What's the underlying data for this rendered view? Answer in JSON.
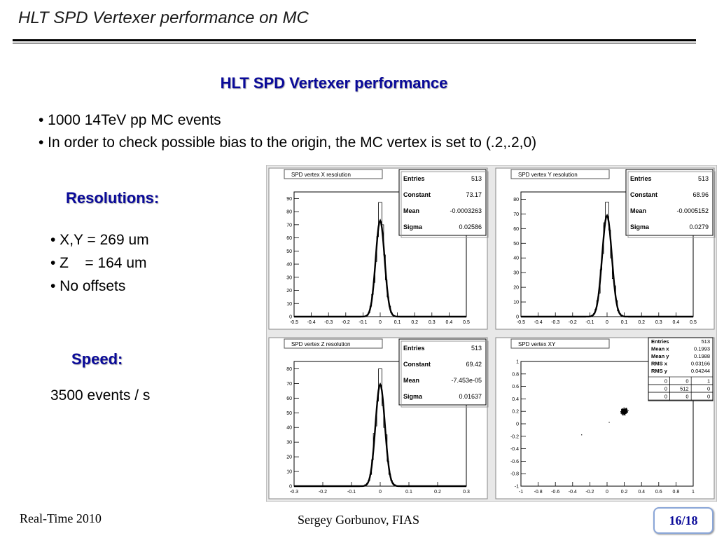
{
  "slide": {
    "title": "HLT SPD Vertexer performance on MC",
    "subtitle": "HLT SPD Vertexer performance",
    "bullets": [
      "• 1000 14TeV pp MC events",
      "• In order to check possible bias to the origin, the MC vertex is set to (.2,.2,0)"
    ],
    "resolutions_heading": "Resolutions:",
    "resolution_items": [
      "• X,Y = 269 um",
      "• Z    = 164 um",
      "• No offsets"
    ],
    "speed_heading": "Speed:",
    "speed_value": "3500 events / s",
    "footer_left": "Real-Time 2010",
    "footer_center": "Sergey Gorbunov, FIAS",
    "page_number": "16/18"
  },
  "colors": {
    "heading_blue": "#0a0a99",
    "panel_bg": "#e8e8e8",
    "frame_bg": "#ffffff"
  },
  "chart_data": [
    {
      "type": "histogram",
      "title": "SPD vertex X resolution",
      "xlim": [
        -0.5,
        0.5
      ],
      "ylim": [
        0,
        95
      ],
      "xticks": [
        "-0.5",
        "-0.4",
        "-0.3",
        "-0.2",
        "-0.1",
        "0",
        "0.1",
        "0.2",
        "0.3",
        "0.4",
        "0.5"
      ],
      "yticks": [
        "0",
        "10",
        "20",
        "30",
        "40",
        "50",
        "60",
        "70",
        "80",
        "90"
      ],
      "yticks_values": [
        0,
        10,
        20,
        30,
        40,
        50,
        60,
        70,
        80,
        90
      ],
      "hist_peak": 87,
      "stats": [
        [
          "Entries",
          "513"
        ],
        [
          "Constant",
          "73.17"
        ],
        [
          "Mean",
          "-0.0003263"
        ],
        [
          "Sigma",
          "0.02586"
        ]
      ],
      "fit": {
        "constant": 73.17,
        "mean": -0.0003263,
        "sigma": 0.02586
      }
    },
    {
      "type": "histogram",
      "title": "SPD vertex Y resolution",
      "xlim": [
        -0.5,
        0.5
      ],
      "ylim": [
        0,
        85
      ],
      "xticks": [
        "-0.5",
        "-0.4",
        "-0.3",
        "-0.2",
        "-0.1",
        "0",
        "0.1",
        "0.2",
        "0.3",
        "0.4",
        "0.5"
      ],
      "yticks": [
        "0",
        "10",
        "20",
        "30",
        "40",
        "50",
        "60",
        "70",
        "80"
      ],
      "yticks_values": [
        0,
        10,
        20,
        30,
        40,
        50,
        60,
        70,
        80
      ],
      "hist_peak": 78,
      "stats": [
        [
          "Entries",
          "513"
        ],
        [
          "Constant",
          "68.96"
        ],
        [
          "Mean",
          "-0.0005152"
        ],
        [
          "Sigma",
          "0.0279"
        ]
      ],
      "fit": {
        "constant": 68.96,
        "mean": -0.0005152,
        "sigma": 0.0279
      }
    },
    {
      "type": "histogram",
      "title": "SPD vertex Z resolution",
      "xlim": [
        -0.3,
        0.3
      ],
      "ylim": [
        0,
        85
      ],
      "xticks": [
        "-0.3",
        "-0.2",
        "-0.1",
        "0",
        "0.1",
        "0.2",
        "0.3"
      ],
      "yticks": [
        "0",
        "10",
        "20",
        "30",
        "40",
        "50",
        "60",
        "70",
        "80"
      ],
      "yticks_values": [
        0,
        10,
        20,
        30,
        40,
        50,
        60,
        70,
        80
      ],
      "hist_peak": 80,
      "stats": [
        [
          "Entries",
          "513"
        ],
        [
          "Constant",
          "69.42"
        ],
        [
          "Mean",
          "-7.453e-05"
        ],
        [
          "Sigma",
          "0.01637"
        ]
      ],
      "fit": {
        "constant": 69.42,
        "mean": -7.453e-05,
        "sigma": 0.01637
      }
    },
    {
      "type": "scatter",
      "title": "SPD vertex XY",
      "xlim": [
        -1,
        1
      ],
      "ylim": [
        -1,
        1
      ],
      "xticks": [
        "-1",
        "-0.8",
        "-0.6",
        "-0.4",
        "-0.2",
        "0",
        "0.2",
        "0.4",
        "0.6",
        "0.8",
        "1"
      ],
      "yticks": [
        "-1",
        "-0.8",
        "-0.6",
        "-0.4",
        "-0.2",
        "0",
        "0.2",
        "0.4",
        "0.6",
        "0.8",
        "1"
      ],
      "cluster_center": [
        0.2,
        0.2
      ],
      "cluster_rms": [
        0.03166,
        0.04244
      ],
      "stats": [
        [
          "Entries",
          "513"
        ],
        [
          "Mean x",
          "0.1993"
        ],
        [
          "Mean y",
          "0.1988"
        ],
        [
          "RMS x",
          "0.03166"
        ],
        [
          "RMS y",
          "0.04244"
        ]
      ],
      "overflow_table": [
        [
          "0",
          "0",
          "1"
        ],
        [
          "0",
          "512",
          "0"
        ],
        [
          "0",
          "0",
          "0"
        ]
      ]
    }
  ]
}
